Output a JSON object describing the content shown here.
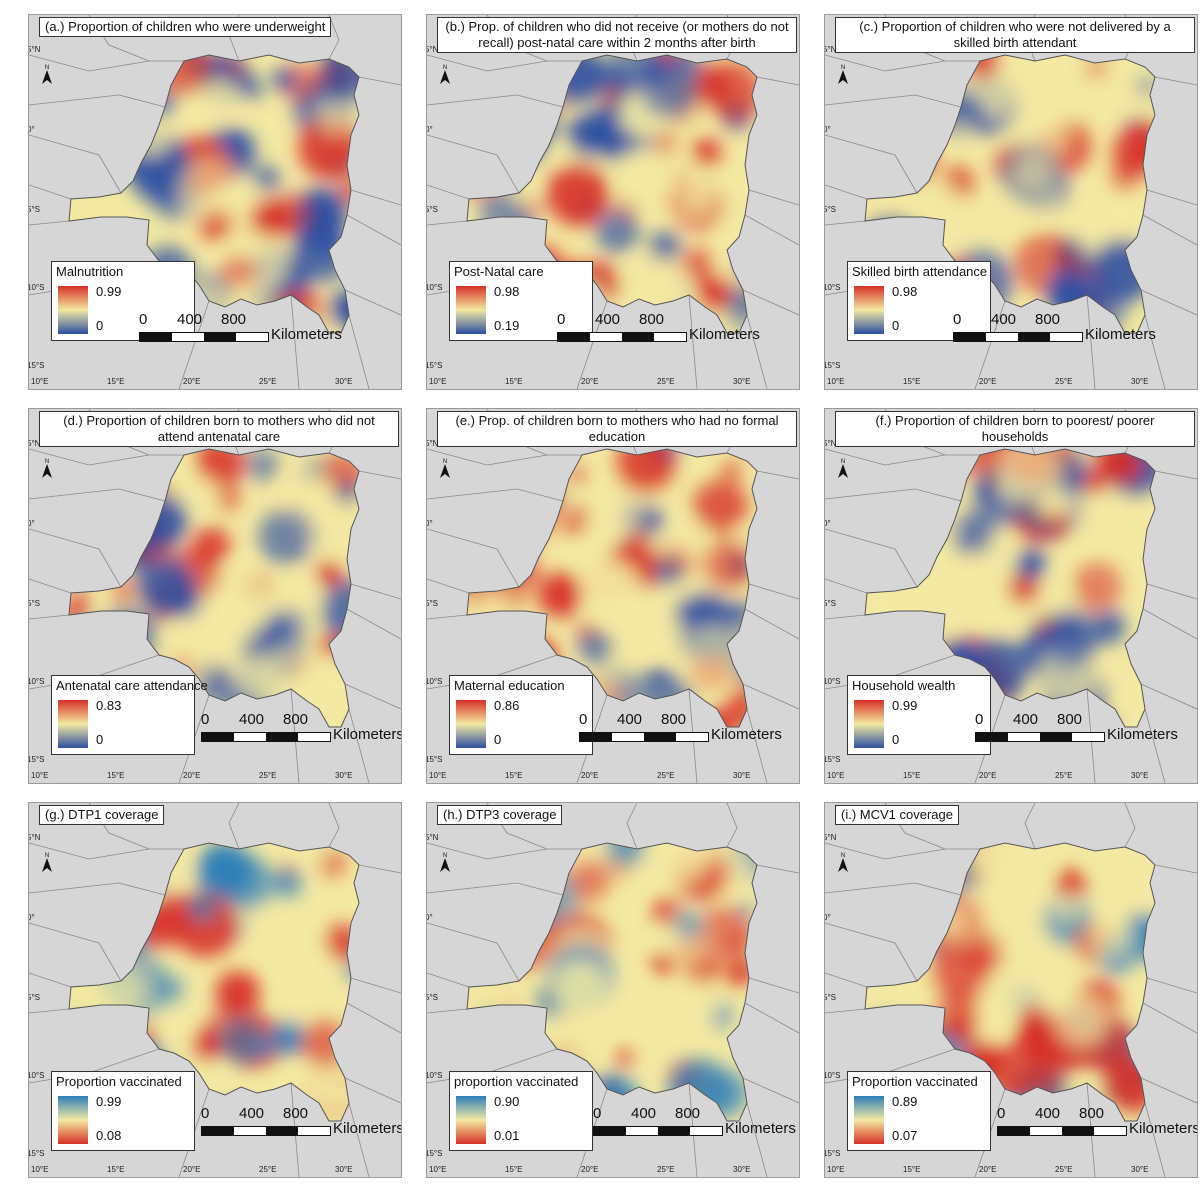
{
  "axis": {
    "lat_labels": [
      "5°N",
      "0°",
      "5°S",
      "10°S",
      "15°S"
    ],
    "lon_labels": [
      "10°E",
      "15°E",
      "20°E",
      "25°E",
      "30°E"
    ]
  },
  "north_arrow": "N",
  "scale_bar": {
    "ticks": [
      "0",
      "400",
      "800"
    ],
    "units": "Kilometers"
  },
  "panels": [
    {
      "title": "(a.) Proportion of children who were underweight",
      "legend_title": "Malnutrition",
      "legend_max": "0.99",
      "legend_min": "0",
      "ramp": "blue-low",
      "colors": [
        "#2c4fa3",
        "#f3e9a2",
        "#d73027"
      ]
    },
    {
      "title": "(b.) Prop. of children who did not receive (or mothers do not recall) post-natal care within 2 months after birth",
      "legend_title": "Post-Natal care",
      "legend_max": "0.98",
      "legend_min": "0.19",
      "ramp": "blue-low",
      "colors": [
        "#2c4fa3",
        "#f3e9a2",
        "#d73027"
      ]
    },
    {
      "title": "(c.) Proportion of children who were not delivered by a skilled birth attendant",
      "legend_title": "Skilled birth attendance",
      "legend_max": "0.98",
      "legend_min": "0",
      "ramp": "blue-low",
      "colors": [
        "#2c4fa3",
        "#f3e9a2",
        "#d73027"
      ]
    },
    {
      "title": "(d.) Proportion of children born to mothers who did not attend antenatal care",
      "legend_title": "Antenatal care attendance",
      "legend_max": "0.83",
      "legend_min": "0",
      "ramp": "blue-low",
      "colors": [
        "#2c4fa3",
        "#f3e9a2",
        "#d73027"
      ]
    },
    {
      "title": "(e.) Prop. of children born to mothers who had no formal education",
      "legend_title": "Maternal education",
      "legend_max": "0.86",
      "legend_min": "0",
      "ramp": "blue-low",
      "colors": [
        "#2c4fa3",
        "#f3e9a2",
        "#d73027"
      ]
    },
    {
      "title": "(f.) Proportion of children born to poorest/ poorer households",
      "legend_title": "Household wealth",
      "legend_max": "0.99",
      "legend_min": "0",
      "ramp": "blue-low",
      "colors": [
        "#2c4fa3",
        "#f3e9a2",
        "#d73027"
      ]
    },
    {
      "title": "(g.) DTP1 coverage",
      "legend_title": "Proportion vaccinated",
      "legend_max": "0.99",
      "legend_min": "0.08",
      "ramp": "red-low",
      "colors": [
        "#d73027",
        "#f3e9a2",
        "#2c7fb8"
      ]
    },
    {
      "title": "(h.) DTP3 coverage",
      "legend_title": "proportion vaccinated",
      "legend_max": "0.90",
      "legend_min": "0.01",
      "ramp": "red-low",
      "colors": [
        "#d73027",
        "#f3e9a2",
        "#2c7fb8"
      ]
    },
    {
      "title": "(i.) MCV1 coverage",
      "legend_title": "Proportion vaccinated",
      "legend_max": "0.89",
      "legend_min": "0.07",
      "ramp": "red-low",
      "colors": [
        "#d73027",
        "#f3e9a2",
        "#2c7fb8"
      ]
    }
  ]
}
